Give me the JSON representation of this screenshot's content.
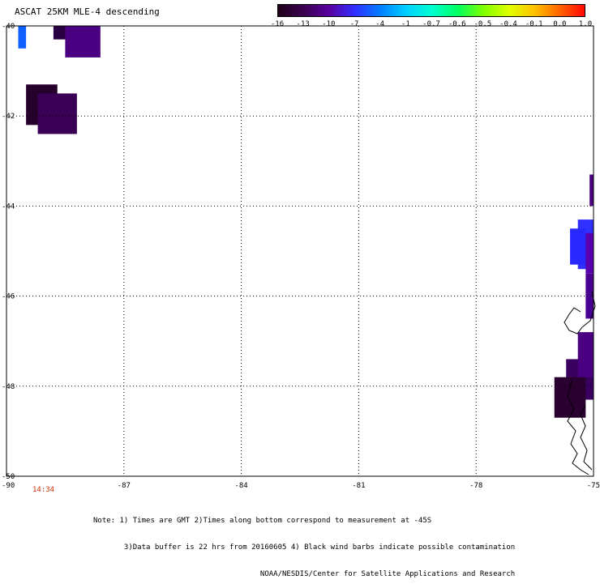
{
  "title": "ASCAT 25KM MLE-4 descending",
  "colorbar": {
    "labels": [
      "-16",
      "-13",
      "-10",
      "-7",
      "-4",
      "-1",
      "-0.7",
      "-0.6",
      "-0.5",
      "-0.4",
      "-0.1",
      "0.0",
      "1.0"
    ],
    "colors": [
      "#200018",
      "#3a0050",
      "#5a00a0",
      "#3030ff",
      "#0080ff",
      "#00d0ff",
      "#00ffd0",
      "#00ff60",
      "#80ff00",
      "#e0ff00",
      "#ffc000",
      "#ff6000",
      "#ff0000"
    ]
  },
  "chart_data": {
    "type": "heatmap",
    "x_ticks": [
      "-90",
      "-87",
      "-84",
      "-81",
      "-78",
      "-75"
    ],
    "y_ticks": [
      "-40",
      "-42",
      "-44",
      "-46",
      "-48",
      "-50"
    ],
    "xlim": [
      -90,
      -75
    ],
    "ylim": [
      -50,
      -40
    ],
    "grid": true,
    "patches": [
      {
        "lon": -89.7,
        "lat": -40.0,
        "lon2": -89.5,
        "lat2": -40.5,
        "color": "#1060ff"
      },
      {
        "lon": -88.8,
        "lat": -40.0,
        "lon2": -88.4,
        "lat2": -40.3,
        "color": "#2a0045"
      },
      {
        "lon": -88.5,
        "lat": -40.0,
        "lon2": -87.6,
        "lat2": -40.7,
        "color": "#4a0080"
      },
      {
        "lon": -89.5,
        "lat": -41.3,
        "lon2": -88.7,
        "lat2": -42.2,
        "color": "#24002a"
      },
      {
        "lon": -89.2,
        "lat": -41.5,
        "lon2": -88.2,
        "lat2": -42.4,
        "color": "#3a0055"
      },
      {
        "lon": -75.1,
        "lat": -43.3,
        "lon2": -75.0,
        "lat2": -44.0,
        "color": "#4a0080"
      },
      {
        "lon": -75.4,
        "lat": -44.3,
        "lon2": -75.0,
        "lat2": -45.4,
        "color": "#3030ff"
      },
      {
        "lon": -75.6,
        "lat": -44.5,
        "lon2": -75.2,
        "lat2": -45.3,
        "color": "#2828ff"
      },
      {
        "lon": -75.2,
        "lat": -44.6,
        "lon2": -75.0,
        "lat2": -45.5,
        "color": "#5a00b0"
      },
      {
        "lon": -75.2,
        "lat": -45.5,
        "lon2": -75.0,
        "lat2": -46.5,
        "color": "#4a0090"
      },
      {
        "lon": -75.7,
        "lat": -47.4,
        "lon2": -75.0,
        "lat2": -48.3,
        "color": "#3a0060"
      },
      {
        "lon": -75.4,
        "lat": -46.8,
        "lon2": -75.0,
        "lat2": -47.8,
        "color": "#4a0080"
      },
      {
        "lon": -76.0,
        "lat": -47.8,
        "lon2": -75.2,
        "lat2": -48.7,
        "color": "#2a0030"
      }
    ]
  },
  "time_label": "14:34",
  "notes": [
    "Note: 1) Times are GMT 2)Times along bottom correspond to measurement at -45S",
    "       3)Data buffer is 22 hrs from 20160605 4) Black wind barbs indicate possible contamination",
    "                                      NOAA/NESDIS/Center for Satellite Applications and Research"
  ]
}
